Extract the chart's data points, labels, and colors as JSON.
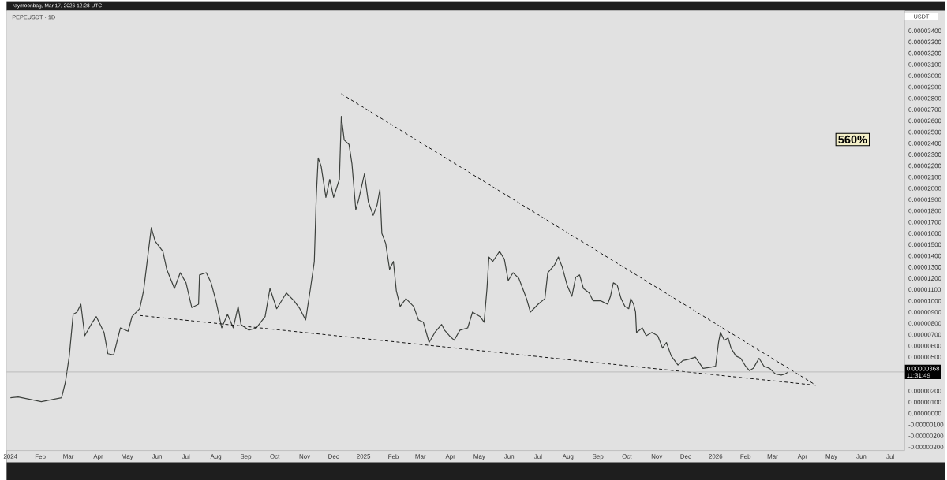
{
  "chart_data": {
    "type": "line",
    "title": "PEPEUSDT · 1D",
    "ylabel": "USDT",
    "annotations": [
      "560%",
      "11:31:49",
      "raymoonbag, Mar 17, 2026 12:28 UTC"
    ],
    "xlim": [
      "2023-12-28",
      "2026-07-16"
    ],
    "ylim": [
      -3.3e-06,
      3.58e-05
    ],
    "xticks": [
      {
        "value": "2024-01-01",
        "label": "2024"
      },
      {
        "value": "2024-02-01",
        "label": "Feb"
      },
      {
        "value": "2024-03-01",
        "label": "Mar"
      },
      {
        "value": "2024-04-01",
        "label": "Apr"
      },
      {
        "value": "2024-05-01",
        "label": "May"
      },
      {
        "value": "2024-06-01",
        "label": "Jun"
      },
      {
        "value": "2024-07-01",
        "label": "Jul"
      },
      {
        "value": "2024-08-01",
        "label": "Aug"
      },
      {
        "value": "2024-09-01",
        "label": "Sep"
      },
      {
        "value": "2024-10-01",
        "label": "Oct"
      },
      {
        "value": "2024-11-01",
        "label": "Nov"
      },
      {
        "value": "2024-12-01",
        "label": "Dec"
      },
      {
        "value": "2025-01-01",
        "label": "2025"
      },
      {
        "value": "2025-02-01",
        "label": "Feb"
      },
      {
        "value": "2025-03-01",
        "label": "Mar"
      },
      {
        "value": "2025-04-01",
        "label": "Apr"
      },
      {
        "value": "2025-05-01",
        "label": "May"
      },
      {
        "value": "2025-06-01",
        "label": "Jun"
      },
      {
        "value": "2025-07-01",
        "label": "Jul"
      },
      {
        "value": "2025-08-01",
        "label": "Aug"
      },
      {
        "value": "2025-09-01",
        "label": "Sep"
      },
      {
        "value": "2025-10-01",
        "label": "Oct"
      },
      {
        "value": "2025-11-01",
        "label": "Nov"
      },
      {
        "value": "2025-12-01",
        "label": "Dec"
      },
      {
        "value": "2026-01-01",
        "label": "2026"
      },
      {
        "value": "2026-02-01",
        "label": "Feb"
      },
      {
        "value": "2026-03-01",
        "label": "Mar"
      },
      {
        "value": "2026-04-01",
        "label": "Apr"
      },
      {
        "value": "2026-05-01",
        "label": "May"
      },
      {
        "value": "2026-06-01",
        "label": "Jun"
      },
      {
        "value": "2026-07-01",
        "label": "Jul"
      }
    ],
    "yticks": [
      {
        "value": 3.4e-05,
        "label": "0.00003400"
      },
      {
        "value": 3.3e-05,
        "label": "0.00003300"
      },
      {
        "value": 3.2e-05,
        "label": "0.00003200"
      },
      {
        "value": 3.1e-05,
        "label": "0.00003100"
      },
      {
        "value": 3e-05,
        "label": "0.00003000"
      },
      {
        "value": 2.9e-05,
        "label": "0.00002900"
      },
      {
        "value": 2.8e-05,
        "label": "0.00002800"
      },
      {
        "value": 2.7e-05,
        "label": "0.00002700"
      },
      {
        "value": 2.6e-05,
        "label": "0.00002600"
      },
      {
        "value": 2.5e-05,
        "label": "0.00002500"
      },
      {
        "value": 2.4e-05,
        "label": "0.00002400"
      },
      {
        "value": 2.3e-05,
        "label": "0.00002300"
      },
      {
        "value": 2.2e-05,
        "label": "0.00002200"
      },
      {
        "value": 2.1e-05,
        "label": "0.00002100"
      },
      {
        "value": 2e-05,
        "label": "0.00002000"
      },
      {
        "value": 1.9e-05,
        "label": "0.00001900"
      },
      {
        "value": 1.8e-05,
        "label": "0.00001800"
      },
      {
        "value": 1.7e-05,
        "label": "0.00001700"
      },
      {
        "value": 1.6e-05,
        "label": "0.00001600"
      },
      {
        "value": 1.5e-05,
        "label": "0.00001500"
      },
      {
        "value": 1.4e-05,
        "label": "0.00001400"
      },
      {
        "value": 1.3e-05,
        "label": "0.00001300"
      },
      {
        "value": 1.2e-05,
        "label": "0.00001200"
      },
      {
        "value": 1.1e-05,
        "label": "0.00001100"
      },
      {
        "value": 1e-05,
        "label": "0.00001000"
      },
      {
        "value": 9e-06,
        "label": "0.00000900"
      },
      {
        "value": 8e-06,
        "label": "0.00000800"
      },
      {
        "value": 7e-06,
        "label": "0.00000700"
      },
      {
        "value": 6e-06,
        "label": "0.00000600"
      },
      {
        "value": 5e-06,
        "label": "0.00000500"
      },
      {
        "value": 2e-06,
        "label": "0.00000200"
      },
      {
        "value": 1e-06,
        "label": "0.00000100"
      },
      {
        "value": 0,
        "label": "0.00000000"
      },
      {
        "value": -1e-06,
        "label": "-0.00000100"
      },
      {
        "value": -2e-06,
        "label": "-0.00000200"
      },
      {
        "value": -3e-06,
        "label": "-0.00000300"
      }
    ],
    "ref_lines": [
      {
        "axis": "y",
        "value": 3.68e-06,
        "label": "0.00000368",
        "color": "#a8a8a8"
      }
    ],
    "series": [
      {
        "color": "#3c403c",
        "x": [
          "2024-01-01",
          "2024-01-09",
          "2024-02-02",
          "2024-02-23",
          "2024-02-27",
          "2024-03-02",
          "2024-03-06",
          "2024-03-10",
          "2024-03-14",
          "2024-03-18",
          "2024-03-26",
          "2024-03-30",
          "2024-04-07",
          "2024-04-11",
          "2024-04-17",
          "2024-04-24",
          "2024-05-02",
          "2024-05-06",
          "2024-05-14",
          "2024-05-18",
          "2024-05-22",
          "2024-05-26",
          "2024-05-30",
          "2024-06-07",
          "2024-06-11",
          "2024-06-19",
          "2024-06-25",
          "2024-07-01",
          "2024-07-07",
          "2024-07-14",
          "2024-07-15",
          "2024-07-22",
          "2024-07-27",
          "2024-08-01",
          "2024-08-07",
          "2024-08-13",
          "2024-08-19",
          "2024-08-24",
          "2024-08-27",
          "2024-09-04",
          "2024-09-12",
          "2024-09-21",
          "2024-09-26",
          "2024-10-03",
          "2024-10-13",
          "2024-10-21",
          "2024-10-27",
          "2024-11-02",
          "2024-11-07",
          "2024-11-11",
          "2024-11-13",
          "2024-11-15",
          "2024-11-18",
          "2024-11-23",
          "2024-11-27",
          "2024-12-01",
          "2024-12-07",
          "2024-12-09",
          "2024-12-12",
          "2024-12-17",
          "2024-12-20",
          "2024-12-24",
          "2024-12-27",
          "2025-01-02",
          "2025-01-06",
          "2025-01-11",
          "2025-01-15",
          "2025-01-18",
          "2025-01-20",
          "2025-01-24",
          "2025-01-28",
          "2025-02-01",
          "2025-02-04",
          "2025-02-08",
          "2025-02-14",
          "2025-02-22",
          "2025-02-27",
          "2025-03-04",
          "2025-03-10",
          "2025-03-16",
          "2025-03-23",
          "2025-03-26",
          "2025-03-31",
          "2025-04-05",
          "2025-04-11",
          "2025-04-19",
          "2025-04-24",
          "2025-05-02",
          "2025-05-06",
          "2025-05-09",
          "2025-05-11",
          "2025-05-15",
          "2025-05-22",
          "2025-05-27",
          "2025-05-31",
          "2025-06-05",
          "2025-06-11",
          "2025-06-15",
          "2025-06-19",
          "2025-06-23",
          "2025-07-01",
          "2025-07-08",
          "2025-07-11",
          "2025-07-18",
          "2025-07-22",
          "2025-07-26",
          "2025-07-31",
          "2025-08-05",
          "2025-08-09",
          "2025-08-13",
          "2025-08-17",
          "2025-08-23",
          "2025-08-27",
          "2025-09-04",
          "2025-09-11",
          "2025-09-14",
          "2025-09-17",
          "2025-09-21",
          "2025-09-25",
          "2025-09-29",
          "2025-10-03",
          "2025-10-05",
          "2025-10-08",
          "2025-10-10",
          "2025-10-11",
          "2025-10-17",
          "2025-10-21",
          "2025-10-27",
          "2025-11-02",
          "2025-11-07",
          "2025-11-11",
          "2025-11-16",
          "2025-11-23",
          "2025-11-28",
          "2025-12-04",
          "2025-12-11",
          "2025-12-19",
          "2025-12-27",
          "2026-01-01",
          "2026-01-04",
          "2026-01-06",
          "2026-01-10",
          "2026-01-14",
          "2026-01-17",
          "2026-01-22",
          "2026-01-27",
          "2026-02-01",
          "2026-02-05",
          "2026-02-09",
          "2026-02-15",
          "2026-02-20",
          "2026-02-26",
          "2026-03-04",
          "2026-03-10",
          "2026-03-14",
          "2026-03-17"
        ],
        "values": [
          1.39e-06,
          1.46e-06,
          1.04e-06,
          1.39e-06,
          2.78e-06,
          5.1e-06,
          8.8e-06,
          9e-06,
          9.7e-06,
          6.9e-06,
          8.1e-06,
          8.6e-06,
          7.2e-06,
          5.3e-06,
          5.2e-06,
          7.6e-06,
          7.3e-06,
          8.6e-06,
          9.3e-06,
          1.09e-05,
          1.37e-05,
          1.65e-05,
          1.53e-05,
          1.44e-05,
          1.28e-05,
          1.11e-05,
          1.25e-05,
          1.16e-05,
          9.4e-06,
          9.7e-06,
          1.23e-05,
          1.25e-05,
          1.16e-05,
          1e-05,
          7.6e-06,
          8.8e-06,
          7.6e-06,
          9.5e-06,
          7.9e-06,
          7.4e-06,
          7.6e-06,
          8.6e-06,
          1.11e-05,
          9.3e-06,
          1.07e-05,
          1e-05,
          9.3e-06,
          8.3e-06,
          1.11e-05,
          1.35e-05,
          1.92e-05,
          2.27e-05,
          2.2e-05,
          1.92e-05,
          2.08e-05,
          1.92e-05,
          2.08e-05,
          2.64e-05,
          2.43e-05,
          2.39e-05,
          2.22e-05,
          1.81e-05,
          1.9e-05,
          2.13e-05,
          1.88e-05,
          1.76e-05,
          1.85e-05,
          1.99e-05,
          1.6e-05,
          1.51e-05,
          1.28e-05,
          1.35e-05,
          1.09e-05,
          9.5e-06,
          1.02e-05,
          9.5e-06,
          8.3e-06,
          8.1e-06,
          6.3e-06,
          7.2e-06,
          7.9e-06,
          7.4e-06,
          6.9e-06,
          6.5e-06,
          7.4e-06,
          7.6e-06,
          9e-06,
          8.6e-06,
          8.1e-06,
          1.11e-05,
          1.39e-05,
          1.35e-05,
          1.44e-05,
          1.37e-05,
          1.18e-05,
          1.25e-05,
          1.2e-05,
          1.11e-05,
          1.02e-05,
          9e-06,
          9.7e-06,
          1.02e-05,
          1.25e-05,
          1.32e-05,
          1.39e-05,
          1.3e-05,
          1.14e-05,
          1.04e-05,
          1.21e-05,
          1.23e-05,
          1.11e-05,
          1.07e-05,
          1e-05,
          1e-05,
          9.7e-06,
          1.04e-05,
          1.16e-05,
          1.14e-05,
          1.02e-05,
          9.5e-06,
          9.3e-06,
          1.02e-05,
          9.7e-06,
          9e-06,
          7.2e-06,
          7.6e-06,
          6.9e-06,
          7.2e-06,
          6.9e-06,
          5.8e-06,
          6.3e-06,
          5.1e-06,
          4.3e-06,
          4.7e-06,
          4.8e-06,
          5e-06,
          4e-06,
          4.1e-06,
          4.2e-06,
          6.3e-06,
          7.2e-06,
          6.5e-06,
          6.7e-06,
          5.8e-06,
          5.1e-06,
          4.9e-06,
          4.2e-06,
          3.8e-06,
          4e-06,
          4.9e-06,
          4.2e-06,
          4e-06,
          3.5e-06,
          3.4e-06,
          3.5e-06,
          3.68e-06
        ]
      },
      {
        "color": "#111111",
        "line_style": "dashed",
        "x": [
          "2024-12-09",
          "2026-04-15"
        ],
        "values": [
          2.84e-05,
          2.5e-06
        ]
      },
      {
        "color": "#111111",
        "line_style": "dashed",
        "x": [
          "2024-05-14",
          "2026-04-15"
        ],
        "values": [
          8.7e-06,
          2.5e-06
        ]
      }
    ]
  }
}
